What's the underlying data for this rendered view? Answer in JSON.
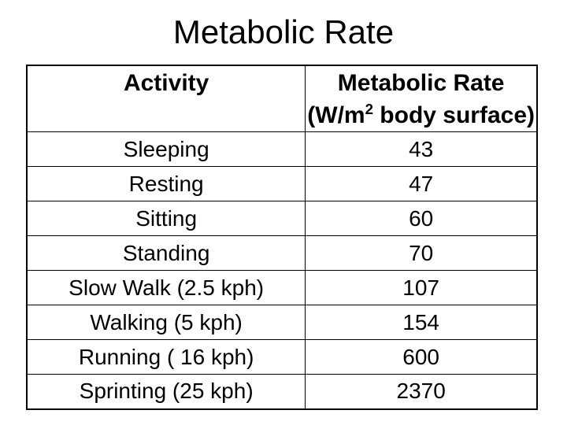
{
  "slide": {
    "title": "Metabolic Rate",
    "background_color": "#ffffff",
    "text_color": "#000000",
    "table_border_color": "#000000"
  },
  "table": {
    "columns": {
      "activity_header": "Activity",
      "rate_header_line1": "Metabolic Rate",
      "rate_header_unit_prefix": "(W/m",
      "rate_header_unit_superscript": "2",
      "rate_header_unit_suffix": " body surface)"
    },
    "rows": [
      {
        "activity": "Sleeping",
        "rate": "43"
      },
      {
        "activity": "Resting",
        "rate": "47"
      },
      {
        "activity": "Sitting",
        "rate": "60"
      },
      {
        "activity": "Standing",
        "rate": "70"
      },
      {
        "activity": "Slow Walk (2.5 kph)",
        "rate": "107"
      },
      {
        "activity": "Walking (5 kph)",
        "rate": "154"
      },
      {
        "activity": "Running ( 16 kph)",
        "rate": "600"
      },
      {
        "activity": "Sprinting (25 kph)",
        "rate": "2370"
      }
    ]
  }
}
